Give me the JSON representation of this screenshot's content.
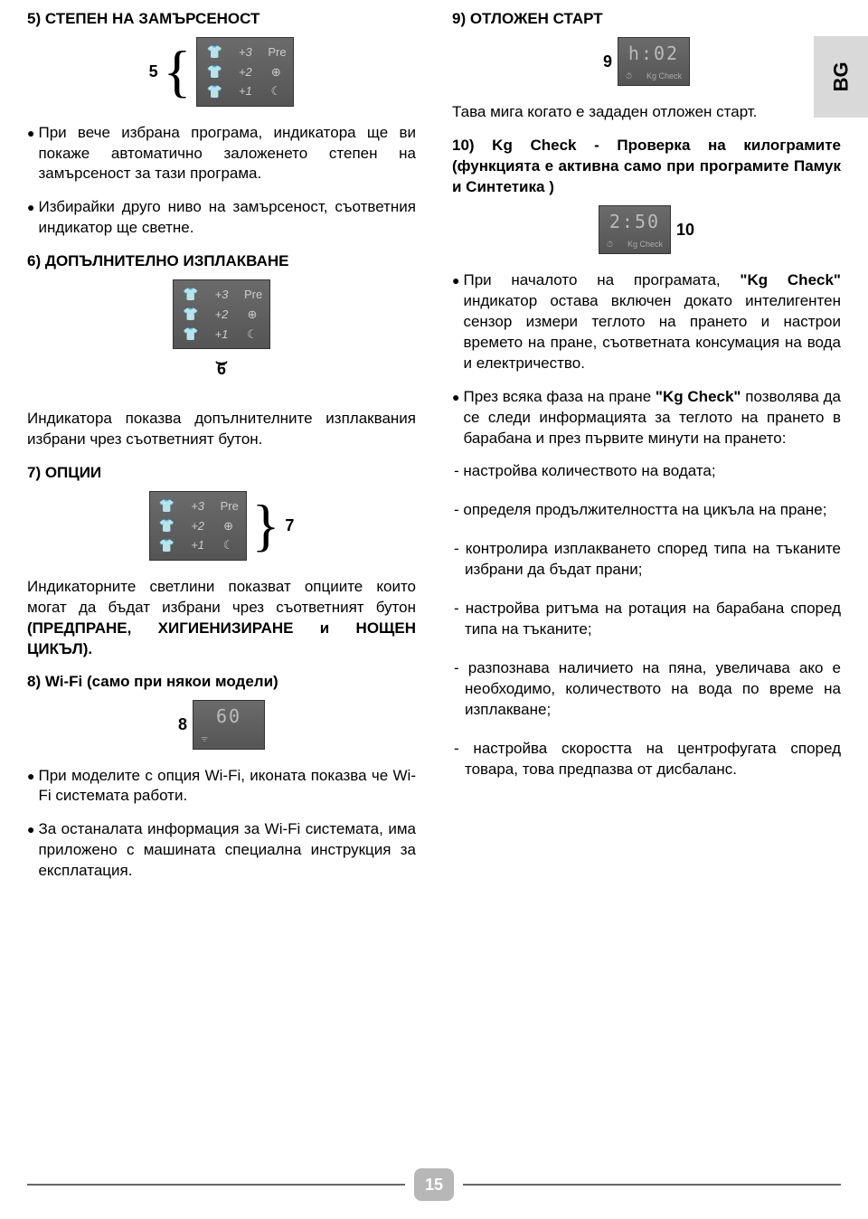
{
  "lang_tab": "BG",
  "page_number": "15",
  "left": {
    "h5": "5) СТЕПЕН НА ЗАМЪРСЕНОСТ",
    "callout5": "5",
    "b5_1": "При вече избрана програма, индикатора ще ви покаже автоматично заложенето степен на замърсеност за тази програма.",
    "b5_2": "Избирайки друго ниво на замърсеност, съответния индикатор ще светне.",
    "h6": "6) ДОПЪЛНИТЕЛНО ИЗПЛАКВАНЕ",
    "callout6": "6",
    "p6": "Индикатора показва допълнителните изплаквания избрани чрез съответният бутон.",
    "h7": "7) ОПЦИИ",
    "callout7": "7",
    "p7_a": "Индикаторните светлини показват опциите които могат да бъдат избрани чрез съответният бутон ",
    "p7_b": "(ПРЕДПРАНЕ, ХИГИЕНИЗИРАНЕ и НОЩЕН ЦИКЪЛ).",
    "h8": "8) Wi-Fi (само при някои модели)",
    "callout8": "8",
    "b8_1": "При моделите с опция Wi-Fi, иконата показва че Wi-Fi системата работи.",
    "b8_2": "За останалата информация за Wi-Fi системата, има приложено с машината специална инструкция за експлатация."
  },
  "right": {
    "h9": "9) ОТЛОЖЕН СТАРТ",
    "callout9": "9",
    "p9": "Тава мига когато е зададен отложен старт.",
    "h10": "10) Kg Check - Проверка на килограмите (функцията е активна само при програмите Памук и Синтетика )",
    "callout10": "10",
    "b10_1a": "При началото на програмата, ",
    "b10_1b": "\"Kg Check\"",
    "b10_1c": " индикатор остава включен докато интелигентен сензор измери теглото на прането и настрои времето на пране, съответната консумация на вода и електричество.",
    "b10_2a": "През всяка фаза на пране ",
    "b10_2b": "\"Kg Check\"",
    "b10_2c": " позволява да се следи информацията за теглото на прането в барабана и през първите минути на прането:",
    "d1": "- настройва количеството на водата;",
    "d2": "- определя продължителността на цикъла на пране;",
    "d3": "- контролира изплакването според типа на тъканите избрани да бъдат прани;",
    "d4": "- настройва ритъма на ротация на барабана според типа на тъканите;",
    "d5": "- разпознава наличието на пяна, увеличава ако е необходимо, количеството на вода по време на изплакване;",
    "d6": "- настройва скоростта на центрофугата според товара, това предпазва от дисбаланс."
  },
  "panels": {
    "threeRow": {
      "rows": [
        {
          "i1": "👕",
          "t": "+3",
          "i2": "Pre"
        },
        {
          "i1": "👕",
          "t": "+2",
          "i2": "⊕"
        },
        {
          "i1": "👕",
          "t": "+1",
          "i2": "☾"
        }
      ]
    },
    "digi9": "h:02",
    "digi10": "2:50",
    "kgcheck": "Kg Check",
    "wifi_digi": "60"
  }
}
